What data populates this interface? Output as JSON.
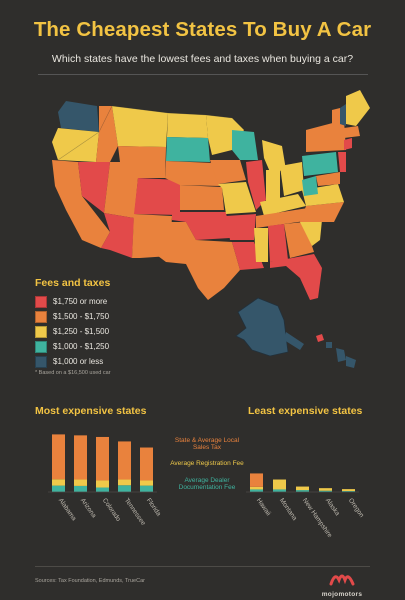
{
  "title": "The Cheapest States To Buy A Car",
  "subtitle": "Which states have the lowest fees and taxes when buying a car?",
  "colors": {
    "accent": "#f2c343",
    "background": "#2f2e2c",
    "tier_1750_plus": "#e24a4a",
    "tier_1500_1750": "#e9823d",
    "tier_1250_1500": "#efc94a",
    "tier_1000_1250": "#3fb39f",
    "tier_under_1000": "#35566a",
    "bar_sales_tax": "#e9823d",
    "bar_registration": "#efc94a",
    "bar_dealer": "#3fb39f"
  },
  "legend": {
    "title": "Fees and taxes",
    "items": [
      {
        "label": "$1,750 or more",
        "color": "#e24a4a"
      },
      {
        "label": "$1,500 - $1,750",
        "color": "#e9823d"
      },
      {
        "label": "$1,250 - $1,500",
        "color": "#efc94a"
      },
      {
        "label": "$1,000 - $1,250",
        "color": "#3fb39f"
      },
      {
        "label": "$1,000 or less",
        "color": "#35566a"
      }
    ]
  },
  "footnote": "* Based on a $16,500 used car",
  "sources": "Sources: Tax Foundation, Edmunds, TrueCar",
  "logo_text": "mojomotors",
  "chart_data": [
    {
      "type": "bar",
      "stacked": true,
      "title": "Most expensive states",
      "categories": [
        "Alabama",
        "Arizona",
        "Colorado",
        "Tennessee",
        "Florida"
      ],
      "series": [
        {
          "name": "State & Average Local Sales Tax",
          "color": "#e9823d",
          "values": [
            1400,
            1380,
            1360,
            1190,
            1030
          ]
        },
        {
          "name": "Average Registration Fee",
          "color": "#efc94a",
          "values": [
            200,
            200,
            220,
            180,
            160
          ]
        },
        {
          "name": "Average Dealer Documentation Fee",
          "color": "#3fb39f",
          "values": [
            200,
            190,
            140,
            210,
            200
          ]
        }
      ],
      "ylim": [
        0,
        2000
      ]
    },
    {
      "type": "bar",
      "stacked": true,
      "title": "Least expensive states",
      "categories": [
        "Hawaii",
        "Montana",
        "New Hampshire",
        "Alaska",
        "Oregon"
      ],
      "series": [
        {
          "name": "State & Average Local Sales Tax",
          "color": "#e9823d",
          "values": [
            420,
            0,
            0,
            0,
            0
          ]
        },
        {
          "name": "Average Registration Fee",
          "color": "#efc94a",
          "values": [
            80,
            310,
            110,
            80,
            60
          ]
        },
        {
          "name": "Average Dealer Documentation Fee",
          "color": "#3fb39f",
          "values": [
            80,
            80,
            60,
            40,
            30
          ]
        }
      ],
      "ylim": [
        0,
        2000
      ]
    }
  ]
}
